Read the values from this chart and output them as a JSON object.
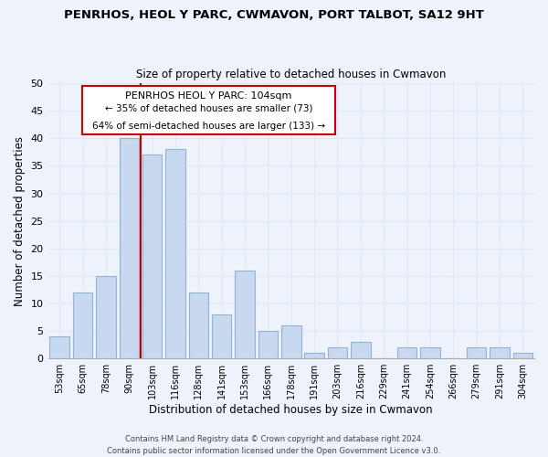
{
  "title": "PENRHOS, HEOL Y PARC, CWMAVON, PORT TALBOT, SA12 9HT",
  "subtitle": "Size of property relative to detached houses in Cwmavon",
  "xlabel": "Distribution of detached houses by size in Cwmavon",
  "ylabel": "Number of detached properties",
  "bar_color": "#c8d8ee",
  "bar_edge_color": "#92b4d4",
  "categories": [
    "53sqm",
    "65sqm",
    "78sqm",
    "90sqm",
    "103sqm",
    "116sqm",
    "128sqm",
    "141sqm",
    "153sqm",
    "166sqm",
    "178sqm",
    "191sqm",
    "203sqm",
    "216sqm",
    "229sqm",
    "241sqm",
    "254sqm",
    "266sqm",
    "279sqm",
    "291sqm",
    "304sqm"
  ],
  "values": [
    4,
    12,
    15,
    40,
    37,
    38,
    12,
    8,
    16,
    5,
    6,
    1,
    2,
    3,
    0,
    2,
    2,
    0,
    2,
    2,
    1
  ],
  "vline_idx": 3,
  "vline_color": "#cc0000",
  "ylim": [
    0,
    50
  ],
  "yticks": [
    0,
    5,
    10,
    15,
    20,
    25,
    30,
    35,
    40,
    45,
    50
  ],
  "annotation_title": "PENRHOS HEOL Y PARC: 104sqm",
  "annotation_line1": "← 35% of detached houses are smaller (73)",
  "annotation_line2": "64% of semi-detached houses are larger (133) →",
  "footer1": "Contains HM Land Registry data © Crown copyright and database right 2024.",
  "footer2": "Contains public sector information licensed under the Open Government Licence v3.0.",
  "grid_color": "#dde8f5",
  "background_color": "#eef2fa"
}
